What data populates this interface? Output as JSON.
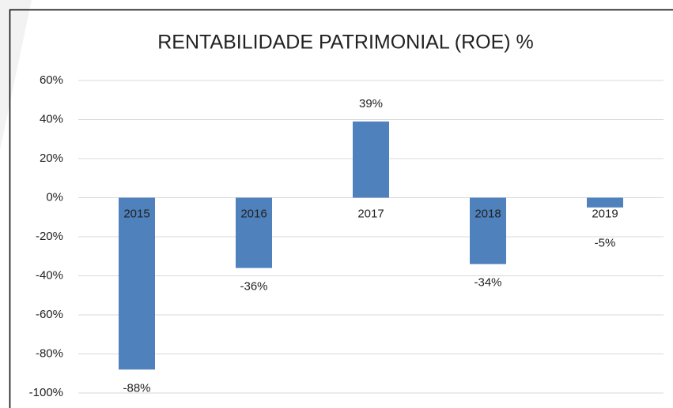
{
  "chart_data": {
    "type": "bar",
    "title": "RENTABILIDADE PATRIMONIAL (ROE) %",
    "categories": [
      "2015",
      "2016",
      "2017",
      "2018",
      "2019"
    ],
    "values": [
      -88,
      -36,
      39,
      -34,
      -5
    ],
    "value_labels": [
      "-88%",
      "-36%",
      "39%",
      "-34%",
      "-5%"
    ],
    "color": "#4f81bd",
    "ylim": [
      -100,
      60
    ],
    "yticks": [
      {
        "value": -100,
        "label": "-100%"
      },
      {
        "value": -80,
        "label": "-80%"
      },
      {
        "value": -60,
        "label": "-60%"
      },
      {
        "value": -40,
        "label": "-40%"
      },
      {
        "value": -20,
        "label": "-20%"
      },
      {
        "value": 0,
        "label": "0%"
      },
      {
        "value": 20,
        "label": "20%"
      },
      {
        "value": 40,
        "label": "40%"
      },
      {
        "value": 60,
        "label": "60%"
      }
    ],
    "grid": true
  }
}
